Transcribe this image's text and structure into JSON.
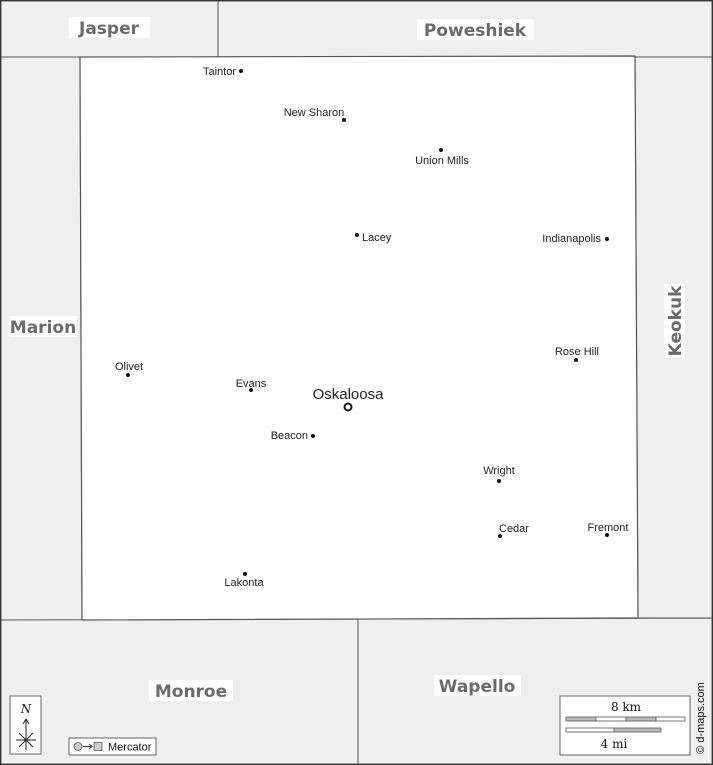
{
  "map": {
    "colors": {
      "neighbor_fill": "#efefef",
      "county_fill": "#ffffff",
      "border": "#555555",
      "label_gray": "#6b6b6b"
    },
    "neighbors": {
      "jasper": "Jasper",
      "poweshiek": "Poweshiek",
      "marion": "Marion",
      "keokuk": "Keokuk",
      "monroe": "Monroe",
      "wapello": "Wapello"
    },
    "county_seat": "Oskaloosa",
    "towns": {
      "taintor": "Taintor",
      "new_sharon": "New Sharon",
      "union_mills": "Union Mills",
      "lacey": "Lacey",
      "indianapolis": "Indianapolis",
      "rose_hill": "Rose Hill",
      "olivet": "Olivet",
      "evans": "Evans",
      "beacon": "Beacon",
      "wright": "Wright",
      "cedar": "Cedar",
      "fremont": "Fremont",
      "lakonta": "Lakonta"
    },
    "compass": {
      "north_label": "N",
      "icon": "compass-rose-icon"
    },
    "projection": {
      "label": "Mercator",
      "icon": "projection-icon"
    },
    "scale_bar": {
      "km_label": "8 km",
      "mi_label": "4 mi"
    },
    "credit": "© d-maps.com"
  }
}
